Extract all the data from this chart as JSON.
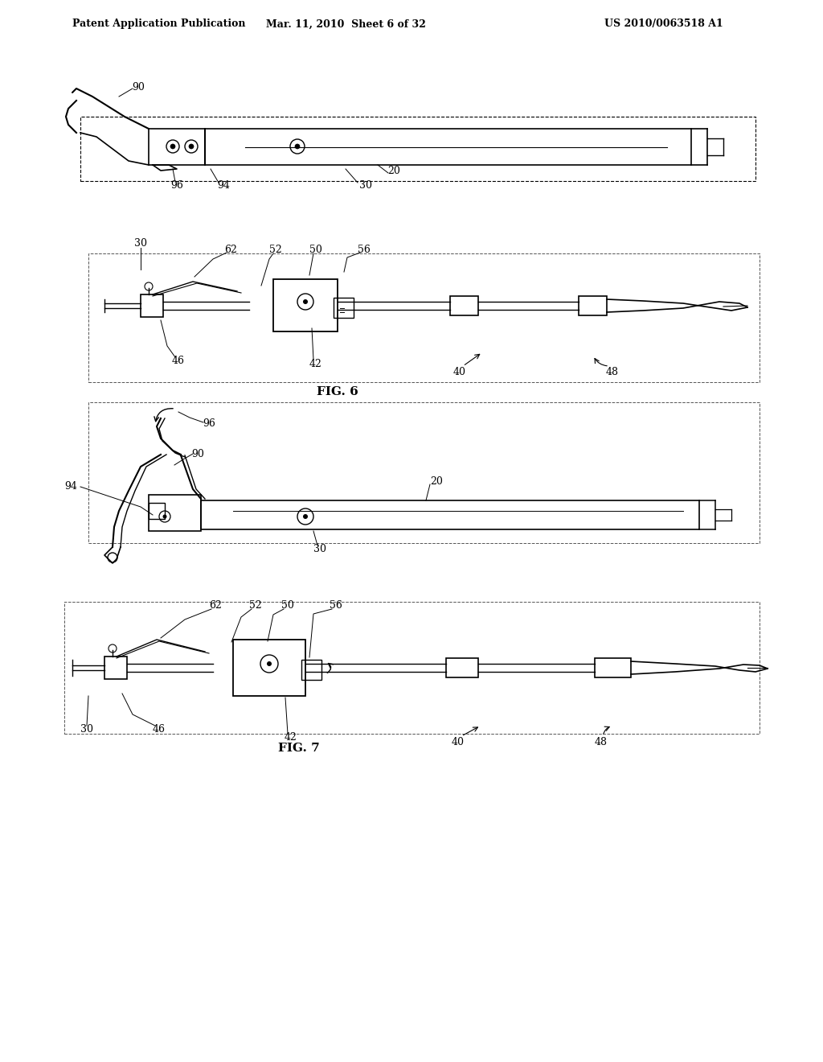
{
  "bg_color": "#ffffff",
  "header_left": "Patent Application Publication",
  "header_mid": "Mar. 11, 2010  Sheet 6 of 32",
  "header_right": "US 2010/0063518 A1",
  "header_fontsize": 9,
  "fig6_label": "FIG. 6",
  "fig7_label": "FIG. 7",
  "line_color": "#000000",
  "text_color": "#000000",
  "label_fontsize": 9
}
